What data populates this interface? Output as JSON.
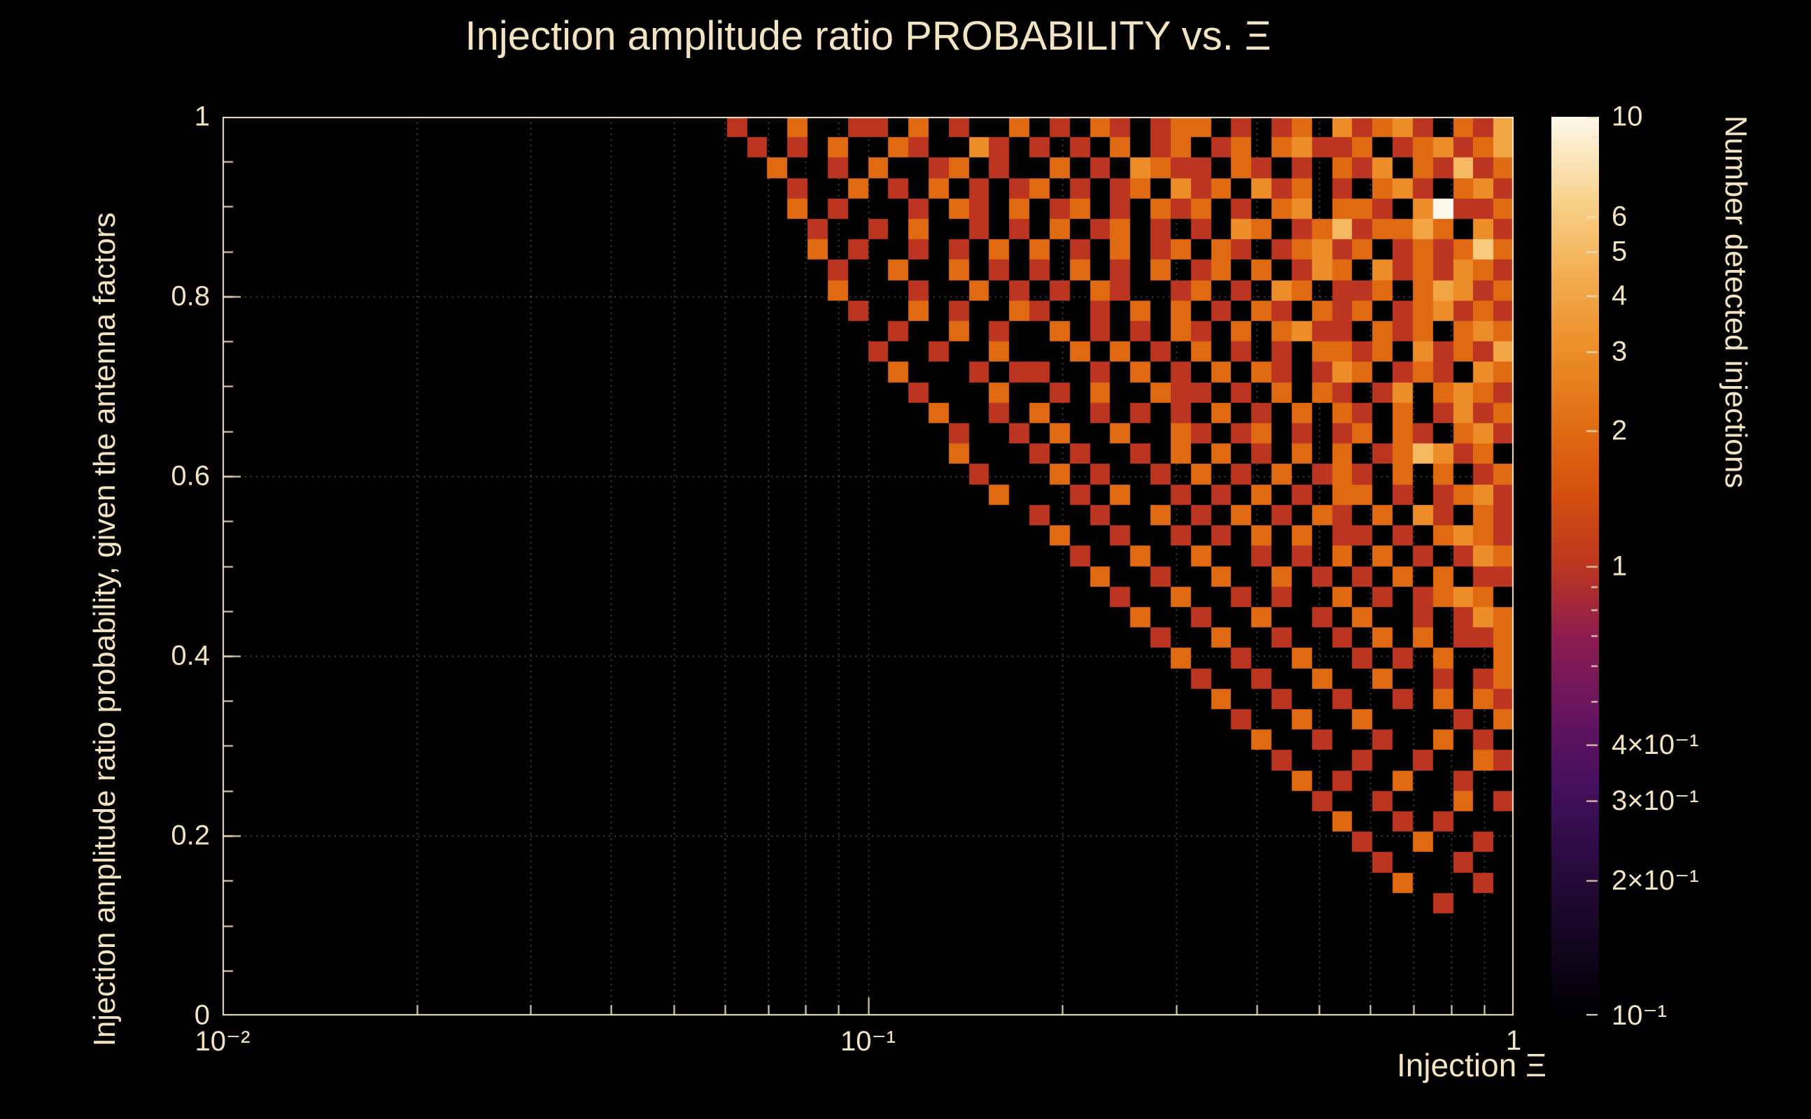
{
  "page": {
    "background": "#000000",
    "accent_text_color": "#f2e3c3"
  },
  "chart_data": {
    "type": "heatmap",
    "title": "Injection amplitude ratio PROBABILITY vs.  Ξ",
    "xlabel": "Injection Ξ",
    "ylabel": "Injection amplitude ratio probability, given the antenna factors",
    "colorbar_label": "Number detected injections",
    "x_scale": "log",
    "x_range": [
      0.01,
      1
    ],
    "y_scale": "linear",
    "y_range": [
      0,
      1
    ],
    "z_scale": "log",
    "z_range": [
      0.1,
      10
    ],
    "grid": true,
    "axis_color": "#f2e3c3",
    "grid_color": "rgba(242,227,195,0.4)",
    "x_ticks": [
      {
        "value": 0.01,
        "label": "10⁻²"
      },
      {
        "value": 0.1,
        "label": "10⁻¹"
      },
      {
        "value": 1,
        "label": "1"
      }
    ],
    "x_minor_ticks": [
      0.02,
      0.03,
      0.04,
      0.05,
      0.06,
      0.07,
      0.08,
      0.09,
      0.2,
      0.3,
      0.4,
      0.5,
      0.6,
      0.7,
      0.8,
      0.9
    ],
    "y_ticks": [
      {
        "value": 0,
        "label": "0"
      },
      {
        "value": 0.2,
        "label": "0.2"
      },
      {
        "value": 0.4,
        "label": "0.4"
      },
      {
        "value": 0.6,
        "label": "0.6"
      },
      {
        "value": 0.8,
        "label": "0.8"
      },
      {
        "value": 1,
        "label": "1"
      }
    ],
    "y_minor_step": 0.05,
    "colorbar_ticks": [
      {
        "value": 10,
        "label": "10"
      },
      {
        "value": 6,
        "label": "6"
      },
      {
        "value": 5,
        "label": "5"
      },
      {
        "value": 4,
        "label": "4"
      },
      {
        "value": 3,
        "label": "3"
      },
      {
        "value": 2,
        "label": "2"
      },
      {
        "value": 1,
        "label": "1"
      },
      {
        "value": 0.4,
        "label": "4×10⁻¹"
      },
      {
        "value": 0.3,
        "label": "3×10⁻¹"
      },
      {
        "value": 0.2,
        "label": "2×10⁻¹"
      },
      {
        "value": 0.1,
        "label": "10⁻¹"
      }
    ],
    "colorbar_minor_ticks": [
      9,
      8,
      7,
      0.9,
      0.8,
      0.7,
      0.6,
      0.5
    ],
    "palette": [
      [
        0.0,
        "#000002"
      ],
      [
        0.15,
        "#230a38"
      ],
      [
        0.25,
        "#42105c"
      ],
      [
        0.33,
        "#641460"
      ],
      [
        0.42,
        "#8c1c50"
      ],
      [
        0.5,
        "#bc3520"
      ],
      [
        0.58,
        "#d4500f"
      ],
      [
        0.65,
        "#e06a12"
      ],
      [
        0.74,
        "#ec8e2a"
      ],
      [
        0.82,
        "#f2ac4e"
      ],
      [
        0.9,
        "#f7cf85"
      ],
      [
        1.0,
        "#fdf8ea"
      ]
    ],
    "bins": {
      "x_bins": 64,
      "y_bins": 44,
      "encoding": "rows listed top (y=1) to bottom (y=0); each row is 8 groups of 8 chars; '.'=0 counts, '1'-'9'=count, 'A'=10",
      "rows": [
        [
          "........",
          "........",
          "........",
          ".1..2..1",
          "1.2.1..2",
          ".1.21.12",
          "2.1.12.3",
          "1231.214"
        ],
        [
          "........",
          "........",
          "........",
          "..1.1.2.",
          ".21..31.",
          "1.1.2.12",
          ".12.2311",
          "2.123124"
        ],
        [
          "........",
          "........",
          "........",
          "...2..1.",
          "2..12.1.",
          ".2.1.321",
          "1.21.1.2",
          "13.21512"
        ],
        [
          "........",
          "........",
          "........",
          "....1..2",
          ".1.2.1.1",
          "2.1.12.3",
          "12.312.1",
          ".231.231"
        ],
        [
          "........",
          "........",
          "........",
          "....2.1.",
          "..1.21.2",
          ".12.1.21",
          "2.1.23.2",
          "21.3A112"
        ],
        [
          "........",
          "........",
          "........",
          ".....1..",
          "1.2..1.1",
          ".2.12.1.",
          "1.32.125",
          "12242.31"
        ],
        [
          "........",
          "........",
          "........",
          ".....2.1",
          "..1.1.2.",
          "2.1.2.12",
          ".21.1231",
          "2.121262"
        ],
        [
          "........",
          "........",
          "........",
          "......1.",
          ".2..2.1.",
          "1.2.1.2.",
          "12.2.132",
          ".3121321"
        ],
        [
          "........",
          "........",
          "........",
          "......2.",
          "..1..2.1",
          ".1.21..1",
          "2.1.32.1",
          "12.24312"
        ],
        [
          "........",
          "........",
          "........",
          ".......1",
          "..2.1..2",
          "1..1.2.2",
          ".1.21.21",
          "2.123121"
        ],
        [
          "........",
          "........",
          "........",
          "........",
          ".1..2.1.",
          ".2.1.1.2",
          "1.2.2311",
          ".212.232"
        ],
        [
          "........",
          "........",
          "........",
          "........",
          "1..1..2.",
          "..2.2.1.",
          "2.1.1.22",
          "12.31214"
        ],
        [
          "........",
          "........",
          "........",
          "........",
          ".2...1.1",
          "1..1.2.1",
          ".2.21.13",
          "2.121.32"
        ],
        [
          "........",
          "........",
          "........",
          "........",
          "..1...2.",
          ".1.2..21",
          "1.1.2.21",
          ".13.2321"
        ],
        [
          "........",
          "........",
          "........",
          "........",
          "...2..1.",
          "2..1.1.1",
          ".2.1.2.2",
          "1.2.1312"
        ],
        [
          "........",
          "........",
          "........",
          "........",
          "....1..1",
          ".2..2..2",
          "1.12.1.1",
          "2.21.231"
        ],
        [
          "........",
          "........",
          "........",
          "........",
          "....2...",
          "1.1..1.2",
          ".2.1.2.2",
          ".125312."
        ],
        [
          "........",
          "........",
          "........",
          "........",
          ".....1..",
          ".2.1..1.",
          "2.1.2.12",
          "1.2.2.12"
        ],
        [
          "........",
          "........",
          "........",
          "........",
          "......2.",
          "..1.2..1",
          ".1.2.1.2",
          "2.1.1231"
        ],
        [
          "........",
          "........",
          "........",
          "........",
          "........",
          "1..1..2.",
          "1.2.1.21",
          ".2.31.21"
        ],
        [
          "........",
          "........",
          "........",
          "........",
          "........",
          ".2..1..1",
          ".1.2.2.1",
          "1.1.2321"
        ],
        [
          "........",
          "........",
          "........",
          "........",
          "........",
          "..1..2..",
          "2..1.1.2",
          ".2.1.132"
        ],
        [
          "........",
          "........",
          "........",
          "........",
          "........",
          "...2..1.",
          ".2..2.1.",
          "1.2.2.11"
        ],
        [
          "........",
          "........",
          "........",
          "........",
          "........",
          "....1..2",
          "..1.1..2",
          ".1.1232."
        ],
        [
          "........",
          "........",
          "........",
          "........",
          "........",
          ".....2..",
          "1..2..1.",
          "2..1.132"
        ],
        [
          "........",
          "........",
          "........",
          "........",
          "........",
          "......1.",
          ".2..1..1",
          ".2.2.112"
        ],
        [
          "........",
          "........",
          "........",
          "........",
          "........",
          ".......2",
          "..1..2..",
          "1.1.2..2"
        ],
        [
          "........",
          "........",
          "........",
          "........",
          "........",
          "........",
          "1..1..2.",
          ".2..1.12"
        ],
        [
          "........",
          "........",
          "........",
          "........",
          "........",
          "........",
          ".2..1..1",
          "..1.2.21"
        ],
        [
          "........",
          "........",
          "........",
          "........",
          "........",
          "........",
          "..1..2..",
          "2....1.2"
        ],
        [
          "........",
          "........",
          "........",
          "........",
          "........",
          "........",
          "...2..1.",
          ".1..2.1."
        ],
        [
          "........",
          "........",
          "........",
          "........",
          "........",
          "........",
          "....1...",
          "1..1..21"
        ],
        [
          "........",
          "........",
          "........",
          "........",
          "........",
          "........",
          ".....2.1",
          "..2..1.."
        ],
        [
          "........",
          "........",
          "........",
          "........",
          "........",
          "........",
          "......1.",
          ".1...2.1"
        ],
        [
          "........",
          "........",
          "........",
          "........",
          "........",
          "........",
          ".......2",
          "..1.1..."
        ],
        [
          "........",
          "........",
          "........",
          "........",
          "........",
          "........",
          "........",
          "1..2..1."
        ],
        [
          "........",
          "........",
          "........",
          "........",
          "........",
          "........",
          "........",
          ".1...1.."
        ],
        [
          "........",
          "........",
          "........",
          "........",
          "........",
          "........",
          "........",
          "..2...1."
        ],
        [
          "........",
          "........",
          "........",
          "........",
          "........",
          "........",
          "........",
          "....1..."
        ],
        [
          "........",
          "........",
          "........",
          "........",
          "........",
          "........",
          "........",
          "........"
        ],
        [
          "........",
          "........",
          "........",
          "........",
          "........",
          "........",
          "........",
          "........"
        ],
        [
          "........",
          "........",
          "........",
          "........",
          "........",
          "........",
          "........",
          "........"
        ],
        [
          "........",
          "........",
          "........",
          "........",
          "........",
          "........",
          "........",
          "........"
        ],
        [
          "........",
          "........",
          "........",
          "........",
          "........",
          "........",
          "........",
          "........"
        ]
      ]
    }
  }
}
